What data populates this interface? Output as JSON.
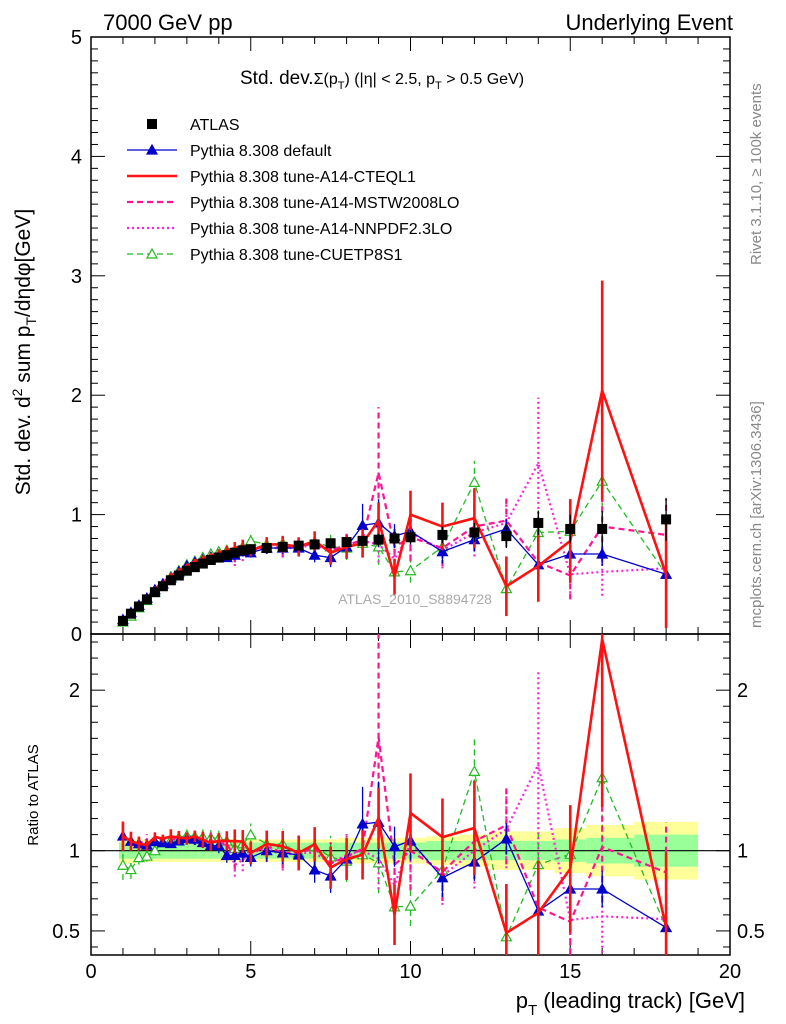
{
  "header": {
    "left": "7000 GeV pp",
    "right": "Underlying Event"
  },
  "side": {
    "rivet": "Rivet 3.1.10, ≥ 100k events",
    "mcplots": "mcplots.cern.ch [arXiv:1306.3436]"
  },
  "watermark": "ATLAS_2010_S8894728",
  "axes": {
    "x_label": "p",
    "x_label_sub": "T",
    "x_label_rest": " (leading track) [GeV]",
    "y_label_main_part1": "Std. dev. d",
    "y_label_main_sup": "2",
    "y_label_main_part2": " sum p",
    "y_label_main_sub": "T",
    "y_label_main_part3": "/dηdφ[GeV]",
    "y_label_ratio": "Ratio to ATLAS"
  },
  "plot_title": {
    "part1": "Std. dev.",
    "part2": "Σ(p",
    "part2_sub": "T",
    "part3": ") (|η| < 2.5, p",
    "part3_sub": "T",
    "part4": " > 0.5 GeV)"
  },
  "colors": {
    "data": "#000000",
    "default": "#0000cc",
    "cteql1": "#ff1111",
    "mstw": "#ff1493",
    "nnpdf": "#ff22dd",
    "cuetp8s1": "#22bb22",
    "band_outer": "#ffff99",
    "band_inner": "#99ff99"
  },
  "chart_data": {
    "type": "line",
    "x": [
      1.0,
      1.25,
      1.5,
      1.75,
      2.0,
      2.25,
      2.5,
      2.75,
      3.0,
      3.25,
      3.5,
      3.75,
      4.0,
      4.25,
      4.5,
      4.75,
      5.0,
      5.5,
      6.0,
      6.5,
      7.0,
      7.5,
      8.0,
      8.5,
      9.0,
      9.5,
      10.0,
      11.0,
      12.0,
      13.0,
      14.0,
      15.0,
      16.0,
      18.0
    ],
    "x_main_range": [
      0,
      20
    ],
    "y_main_range": [
      0,
      5
    ],
    "y_main_ticks": [
      0,
      1,
      2,
      3,
      4,
      5
    ],
    "y_main_tick_labels": [
      "0",
      "1",
      "2",
      "3",
      "4",
      "5"
    ],
    "y_ratio_range": [
      0.35,
      2.35
    ],
    "y_ratio_ticks": [
      0.5,
      1,
      2
    ],
    "y_ratio_tick_labels": [
      "0.5",
      "1",
      "2"
    ],
    "x_ticks": [
      0,
      5,
      10,
      15,
      20
    ],
    "x_tick_labels": [
      "0",
      "5",
      "10",
      "15",
      "20"
    ],
    "data": {
      "name": "ATLAS",
      "y": [
        0.11,
        0.17,
        0.23,
        0.29,
        0.35,
        0.4,
        0.45,
        0.49,
        0.53,
        0.56,
        0.59,
        0.62,
        0.64,
        0.66,
        0.68,
        0.7,
        0.71,
        0.72,
        0.73,
        0.74,
        0.75,
        0.76,
        0.77,
        0.78,
        0.79,
        0.8,
        0.81,
        0.83,
        0.85,
        0.82,
        0.93,
        0.88,
        0.88,
        0.96
      ],
      "yerr": [
        0.01,
        0.01,
        0.01,
        0.01,
        0.01,
        0.01,
        0.01,
        0.01,
        0.01,
        0.01,
        0.01,
        0.01,
        0.01,
        0.01,
        0.02,
        0.02,
        0.02,
        0.02,
        0.03,
        0.03,
        0.03,
        0.03,
        0.04,
        0.04,
        0.05,
        0.05,
        0.06,
        0.07,
        0.08,
        0.1,
        0.1,
        0.12,
        0.15,
        0.18
      ],
      "band_inner": [
        0.05,
        0.05,
        0.05,
        0.05,
        0.05,
        0.05,
        0.05,
        0.05,
        0.05,
        0.05,
        0.05,
        0.05,
        0.05,
        0.05,
        0.05,
        0.05,
        0.05,
        0.05,
        0.05,
        0.05,
        0.05,
        0.05,
        0.05,
        0.05,
        0.05,
        0.05,
        0.05,
        0.06,
        0.06,
        0.06,
        0.06,
        0.07,
        0.08,
        0.1
      ],
      "band_outer": [
        0.08,
        0.08,
        0.07,
        0.07,
        0.07,
        0.07,
        0.07,
        0.07,
        0.07,
        0.07,
        0.07,
        0.07,
        0.07,
        0.07,
        0.07,
        0.07,
        0.07,
        0.07,
        0.07,
        0.07,
        0.07,
        0.07,
        0.08,
        0.08,
        0.08,
        0.08,
        0.08,
        0.09,
        0.1,
        0.12,
        0.12,
        0.14,
        0.16,
        0.18
      ]
    },
    "series": [
      {
        "key": "default",
        "name": "Pythia 8.308 default",
        "marker": "triangle",
        "dash": "solid",
        "y": [
          0.12,
          0.18,
          0.24,
          0.3,
          0.37,
          0.42,
          0.47,
          0.52,
          0.57,
          0.6,
          0.62,
          0.64,
          0.66,
          0.64,
          0.66,
          0.69,
          0.68,
          0.72,
          0.72,
          0.72,
          0.66,
          0.64,
          0.73,
          0.91,
          0.93,
          0.82,
          0.86,
          0.69,
          0.79,
          0.88,
          0.58,
          0.67,
          0.67,
          0.5
        ],
        "yerr": [
          0.01,
          0.01,
          0.01,
          0.01,
          0.01,
          0.01,
          0.01,
          0.01,
          0.02,
          0.02,
          0.02,
          0.02,
          0.03,
          0.03,
          0.03,
          0.04,
          0.04,
          0.05,
          0.05,
          0.06,
          0.06,
          0.08,
          0.1,
          0.18,
          0.2,
          0.1,
          0.1,
          0.1,
          0.1,
          0.08,
          0.1,
          0.1,
          0.1,
          0.1
        ]
      },
      {
        "key": "cteql1",
        "name": "Pythia 8.308 tune-A14-CTEQL1",
        "marker": "none",
        "dash": "solid",
        "y": [
          0.12,
          0.18,
          0.24,
          0.3,
          0.38,
          0.43,
          0.49,
          0.53,
          0.57,
          0.61,
          0.63,
          0.65,
          0.68,
          0.7,
          0.72,
          0.74,
          0.7,
          0.75,
          0.75,
          0.73,
          0.78,
          0.68,
          0.73,
          0.76,
          0.95,
          0.48,
          1.0,
          0.9,
          0.97,
          0.4,
          0.57,
          0.78,
          2.04,
          0.5
        ],
        "yerr": [
          0.01,
          0.01,
          0.01,
          0.01,
          0.01,
          0.01,
          0.02,
          0.02,
          0.02,
          0.02,
          0.03,
          0.03,
          0.03,
          0.04,
          0.05,
          0.05,
          0.05,
          0.06,
          0.07,
          0.08,
          0.08,
          0.1,
          0.1,
          0.12,
          0.15,
          0.15,
          0.2,
          0.2,
          0.25,
          0.25,
          0.3,
          0.35,
          0.92,
          0.45
        ]
      },
      {
        "key": "mstw",
        "name": "Pythia 8.308 tune-A14-MSTW2008LO",
        "marker": "none",
        "dash": "dashed",
        "y": [
          0.12,
          0.18,
          0.24,
          0.3,
          0.37,
          0.43,
          0.48,
          0.53,
          0.57,
          0.6,
          0.63,
          0.66,
          0.67,
          0.69,
          0.65,
          0.7,
          0.7,
          0.74,
          0.72,
          0.73,
          0.76,
          0.7,
          0.74,
          0.79,
          1.35,
          0.73,
          0.81,
          0.72,
          0.9,
          0.95,
          0.6,
          0.49,
          0.9,
          0.83
        ],
        "yerr": [
          0.01,
          0.01,
          0.01,
          0.01,
          0.01,
          0.01,
          0.02,
          0.02,
          0.02,
          0.02,
          0.03,
          0.03,
          0.03,
          0.04,
          0.05,
          0.05,
          0.05,
          0.06,
          0.07,
          0.08,
          0.08,
          0.1,
          0.1,
          0.12,
          0.55,
          0.15,
          0.2,
          0.15,
          0.2,
          0.2,
          0.25,
          0.2,
          0.3,
          0.3
        ]
      },
      {
        "key": "nnpdf",
        "name": "Pythia 8.308 tune-A14-NNPDF2.3LO",
        "marker": "none",
        "dash": "dotted",
        "y": [
          0.12,
          0.18,
          0.24,
          0.31,
          0.37,
          0.43,
          0.49,
          0.53,
          0.57,
          0.6,
          0.63,
          0.66,
          0.67,
          0.68,
          0.62,
          0.66,
          0.7,
          0.73,
          0.71,
          0.73,
          0.74,
          0.7,
          0.75,
          0.78,
          0.75,
          0.63,
          0.85,
          0.7,
          0.85,
          0.93,
          1.43,
          0.5,
          0.52,
          0.55
        ],
        "yerr": [
          0.01,
          0.01,
          0.01,
          0.01,
          0.01,
          0.01,
          0.02,
          0.02,
          0.02,
          0.02,
          0.03,
          0.03,
          0.03,
          0.04,
          0.05,
          0.05,
          0.05,
          0.06,
          0.07,
          0.08,
          0.08,
          0.1,
          0.1,
          0.12,
          0.15,
          0.15,
          0.2,
          0.15,
          0.2,
          0.2,
          0.55,
          0.2,
          0.2,
          0.2
        ]
      },
      {
        "key": "cuetp8s1",
        "name": "Pythia 8.308 tune-CUETP8S1",
        "marker": "open-triangle",
        "dash": "dashed",
        "y": [
          0.1,
          0.15,
          0.22,
          0.28,
          0.35,
          0.42,
          0.48,
          0.53,
          0.58,
          0.61,
          0.64,
          0.67,
          0.69,
          0.7,
          0.69,
          0.73,
          0.78,
          0.75,
          0.76,
          0.73,
          0.77,
          0.73,
          0.72,
          0.76,
          0.73,
          0.52,
          0.53,
          0.73,
          1.27,
          0.38,
          0.85,
          0.86,
          1.28,
          0.5
        ],
        "yerr": [
          0.01,
          0.01,
          0.01,
          0.01,
          0.01,
          0.01,
          0.02,
          0.02,
          0.02,
          0.02,
          0.03,
          0.03,
          0.03,
          0.04,
          0.05,
          0.05,
          0.05,
          0.06,
          0.07,
          0.08,
          0.08,
          0.1,
          0.1,
          0.12,
          0.15,
          0.12,
          0.1,
          0.1,
          0.18,
          0.1,
          0.2,
          0.2,
          0.4,
          0.2
        ]
      }
    ]
  }
}
